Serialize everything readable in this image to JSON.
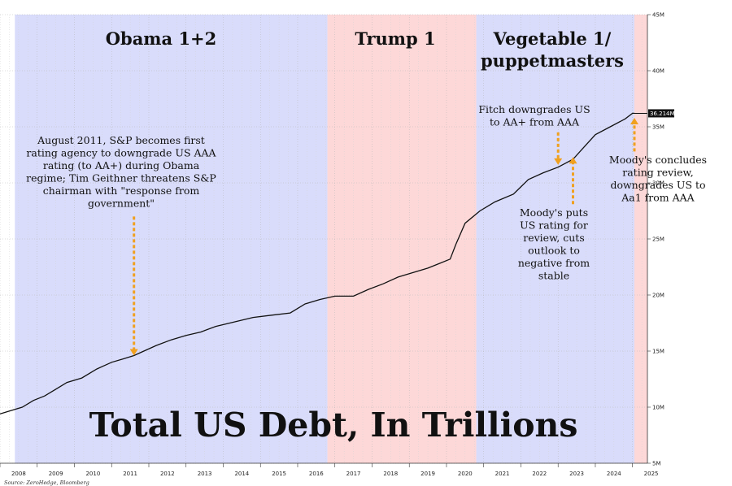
{
  "chart_data": {
    "type": "line",
    "title": "Total US Debt, In Trillions",
    "source": "Source: ZeroHedge, Bloomberg",
    "x_ticks": [
      "2008",
      "2009",
      "2010",
      "2011",
      "2012",
      "2013",
      "2014",
      "2015",
      "2016",
      "2017",
      "2018",
      "2019",
      "2020",
      "2021",
      "2022",
      "2023",
      "2024",
      "2025"
    ],
    "y_ticks": [
      "5M",
      "10M",
      "15M",
      "20M",
      "25M",
      "30M",
      "35M",
      "40M",
      "45M"
    ],
    "y_tick_values": [
      5,
      10,
      15,
      20,
      25,
      30,
      35,
      40,
      45
    ],
    "xlim": [
      2008.0,
      2025.4
    ],
    "ylim": [
      5,
      45
    ],
    "last_value_label": "36.214M",
    "series": [
      {
        "x": [
          2008.0,
          2008.3,
          2008.6,
          2008.9,
          2009.2,
          2009.5,
          2009.8,
          2010.2,
          2010.6,
          2011.0,
          2011.3,
          2011.6,
          2011.8,
          2012.2,
          2012.6,
          2013.0,
          2013.4,
          2013.8,
          2014.3,
          2014.8,
          2015.3,
          2015.8,
          2016.2,
          2016.6,
          2017.0,
          2017.5,
          2017.9,
          2018.3,
          2018.7,
          2019.1,
          2019.5,
          2019.8,
          2020.1,
          2020.25,
          2020.5,
          2020.9,
          2021.3,
          2021.8,
          2022.2,
          2022.6,
          2023.0,
          2023.4,
          2023.7,
          2024.0,
          2024.4,
          2024.8,
          2025.0,
          2025.05
        ],
        "y": [
          9.4,
          9.7,
          10.0,
          10.6,
          11.0,
          11.6,
          12.2,
          12.6,
          13.4,
          14.0,
          14.3,
          14.6,
          14.9,
          15.5,
          16.0,
          16.4,
          16.7,
          17.2,
          17.6,
          18.0,
          18.2,
          18.4,
          19.2,
          19.6,
          19.9,
          19.9,
          20.5,
          21.0,
          21.6,
          22.0,
          22.4,
          22.8,
          23.2,
          24.5,
          26.4,
          27.5,
          28.3,
          29.0,
          30.3,
          30.9,
          31.4,
          32.1,
          33.2,
          34.3,
          35.0,
          35.7,
          36.2,
          36.2
        ]
      }
    ],
    "regions": [
      {
        "label": "Obama 1+2",
        "start": 2008.4,
        "end": 2016.8,
        "color": "#d9dcfb"
      },
      {
        "label": "Trump 1",
        "start": 2016.8,
        "end": 2020.8,
        "color": "#fdd8d8"
      },
      {
        "label": "Vegetable 1/ puppetmasters",
        "start": 2020.8,
        "end": 2025.05,
        "color": "#d9dcfb"
      },
      {
        "label": "",
        "start": 2025.05,
        "end": 2025.4,
        "color": "#fdd8d8"
      }
    ],
    "region_labels": [
      {
        "lines": [
          "Obama 1+2"
        ]
      },
      {
        "lines": [
          "Trump 1"
        ]
      },
      {
        "lines": [
          "Vegetable 1/",
          "puppetmasters"
        ]
      }
    ],
    "annotations": [
      {
        "lines": [
          "August 2011, S&P becomes first",
          "rating agency to downgrade US AAA",
          "rating (to AA+) during Obama",
          "regime; Tim Geithner threatens S&P",
          "chairman with \"response from",
          "government\""
        ],
        "arrow_x": 2011.6,
        "arrow_from": 27.0,
        "arrow_to": 14.6,
        "direction": "down"
      },
      {
        "lines": [
          "Fitch downgrades US",
          "to AA+ from AAA"
        ],
        "arrow_x": 2023.0,
        "arrow_from": 34.5,
        "arrow_to": 31.6,
        "direction": "down"
      },
      {
        "lines": [
          "Moody's puts",
          "US rating for",
          "review, cuts",
          "outlook to",
          "negative from",
          "stable"
        ],
        "arrow_x": 2023.4,
        "arrow_from": 28.1,
        "arrow_to": 32.3,
        "direction": "up"
      },
      {
        "lines": [
          "Moody's concludes",
          "rating review,",
          "downgrades US to",
          "Aa1 from AAA"
        ],
        "arrow_x": 2025.05,
        "arrow_from": 32.8,
        "arrow_to": 35.8,
        "direction": "up"
      }
    ]
  }
}
